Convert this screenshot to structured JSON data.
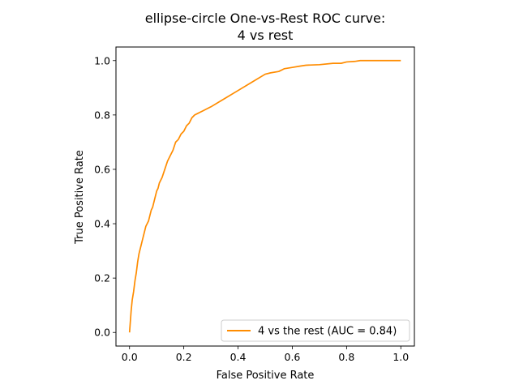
{
  "chart_data": {
    "type": "line",
    "title": "ellipse-circle One-vs-Rest ROC curve:",
    "subtitle": "4 vs rest",
    "xlabel": "False Positive Rate",
    "ylabel": "True Positive Rate",
    "xlim": [
      -0.05,
      1.05
    ],
    "ylim": [
      -0.05,
      1.05
    ],
    "xticks": [
      "0.0",
      "0.2",
      "0.4",
      "0.6",
      "0.8",
      "1.0"
    ],
    "yticks": [
      "0.0",
      "0.2",
      "0.4",
      "0.6",
      "0.8",
      "1.0"
    ],
    "grid": false,
    "legend_position": "lower right",
    "series": [
      {
        "name": "4 vs the rest (AUC = 0.84)",
        "color": "#ff8c00",
        "x": [
          0.0,
          0.003,
          0.006,
          0.01,
          0.015,
          0.02,
          0.025,
          0.03,
          0.035,
          0.04,
          0.045,
          0.05,
          0.055,
          0.06,
          0.065,
          0.07,
          0.075,
          0.08,
          0.085,
          0.09,
          0.095,
          0.1,
          0.105,
          0.11,
          0.12,
          0.13,
          0.14,
          0.15,
          0.16,
          0.17,
          0.18,
          0.19,
          0.2,
          0.21,
          0.22,
          0.23,
          0.24,
          0.25,
          0.26,
          0.27,
          0.3,
          0.35,
          0.4,
          0.45,
          0.5,
          0.52,
          0.55,
          0.57,
          0.6,
          0.63,
          0.65,
          0.7,
          0.75,
          0.78,
          0.8,
          0.83,
          0.85,
          0.9,
          0.95,
          1.0
        ],
        "y": [
          0.0,
          0.04,
          0.08,
          0.12,
          0.15,
          0.19,
          0.22,
          0.26,
          0.29,
          0.31,
          0.33,
          0.35,
          0.37,
          0.39,
          0.4,
          0.41,
          0.43,
          0.45,
          0.46,
          0.48,
          0.5,
          0.52,
          0.53,
          0.55,
          0.57,
          0.6,
          0.63,
          0.65,
          0.67,
          0.7,
          0.71,
          0.73,
          0.74,
          0.76,
          0.77,
          0.79,
          0.8,
          0.805,
          0.81,
          0.815,
          0.83,
          0.86,
          0.89,
          0.92,
          0.95,
          0.955,
          0.96,
          0.97,
          0.975,
          0.98,
          0.983,
          0.985,
          0.99,
          0.99,
          0.995,
          0.997,
          1.0,
          1.0,
          1.0,
          1.0
        ]
      }
    ]
  }
}
